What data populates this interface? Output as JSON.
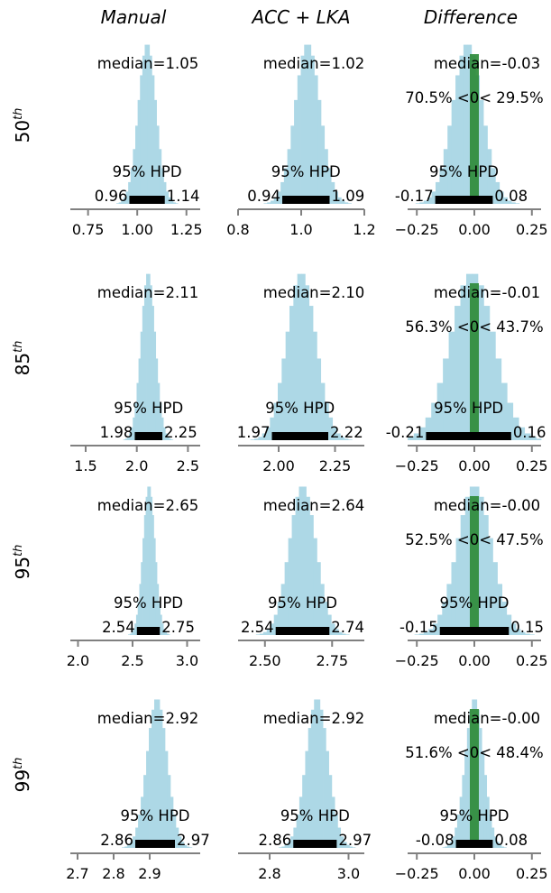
{
  "colors": {
    "hist": "#add8e6",
    "hpd_bar": "#000000",
    "zero_band": "#2e8b3a",
    "axis": "#808080"
  },
  "labels": {
    "hpd": "95% HPD",
    "median_prefix": "median=",
    "sep_lt": " <0< "
  },
  "column_titles": [
    "Manual",
    "ACC + LKA",
    "Difference"
  ],
  "row_labels": [
    {
      "base": "50",
      "sup": "th"
    },
    {
      "base": "85",
      "sup": "th"
    },
    {
      "base": "95",
      "sup": "th"
    },
    {
      "base": "99",
      "sup": "th"
    }
  ],
  "chart_data": [
    {
      "type": "histogram",
      "row": 0,
      "col": 0,
      "median": "1.05",
      "hpd": [
        0.96,
        1.14
      ],
      "hpd_labels": [
        "0.96",
        "1.14"
      ],
      "center": 1.05,
      "sd": 0.045,
      "xlim": [
        0.66,
        1.32
      ],
      "ticks": [
        0.75,
        1.0,
        1.25
      ],
      "tick_labels": [
        "0.75",
        "1.00",
        "1.25"
      ]
    },
    {
      "type": "histogram",
      "row": 0,
      "col": 1,
      "median": "1.02",
      "hpd": [
        0.94,
        1.09
      ],
      "hpd_labels": [
        "0.94",
        "1.09"
      ],
      "center": 1.02,
      "sd": 0.04,
      "xlim": [
        0.8,
        1.2
      ],
      "ticks": [
        0.8,
        1.0,
        1.2
      ],
      "tick_labels": [
        "0.8",
        "1.0",
        "1.2"
      ]
    },
    {
      "type": "histogram",
      "row": 0,
      "col": 2,
      "median": "-0.03",
      "hpd": [
        -0.17,
        0.08
      ],
      "hpd_labels": [
        "-0.17",
        "0.08"
      ],
      "center": -0.03,
      "sd": 0.065,
      "xlim": [
        -0.29,
        0.29
      ],
      "ticks": [
        -0.25,
        0.0,
        0.25
      ],
      "tick_labels": [
        "−0.25",
        "0.00",
        "0.25"
      ],
      "prob_lt": "70.5%",
      "prob_gt": "29.5%"
    },
    {
      "type": "histogram",
      "row": 1,
      "col": 0,
      "median": "2.11",
      "hpd": [
        1.98,
        2.25
      ],
      "hpd_labels": [
        "1.98",
        "2.25"
      ],
      "center": 2.11,
      "sd": 0.07,
      "xlim": [
        1.35,
        2.62
      ],
      "ticks": [
        1.5,
        2.0,
        2.5
      ],
      "tick_labels": [
        "1.5",
        "2.0",
        "2.5"
      ]
    },
    {
      "type": "histogram",
      "row": 1,
      "col": 1,
      "median": "2.10",
      "hpd": [
        1.97,
        2.22
      ],
      "hpd_labels": [
        "1.97",
        "2.22"
      ],
      "center": 2.1,
      "sd": 0.065,
      "xlim": [
        1.82,
        2.38
      ],
      "ticks": [
        2.0,
        2.25
      ],
      "tick_labels": [
        "2.00",
        "2.25"
      ]
    },
    {
      "type": "histogram",
      "row": 1,
      "col": 2,
      "median": "-0.01",
      "hpd": [
        -0.21,
        0.16
      ],
      "hpd_labels": [
        "-0.21",
        "0.16"
      ],
      "center": -0.01,
      "sd": 0.095,
      "xlim": [
        -0.29,
        0.29
      ],
      "ticks": [
        -0.25,
        0.0,
        0.25
      ],
      "tick_labels": [
        "−0.25",
        "0.00",
        "0.25"
      ],
      "prob_lt": "56.3%",
      "prob_gt": "43.7%"
    },
    {
      "type": "histogram",
      "row": 2,
      "col": 0,
      "median": "2.65",
      "hpd": [
        2.54,
        2.75
      ],
      "hpd_labels": [
        "2.54",
        "2.75"
      ],
      "center": 2.65,
      "sd": 0.055,
      "xlim": [
        1.93,
        3.12
      ],
      "ticks": [
        2.0,
        2.5,
        3.0
      ],
      "tick_labels": [
        "2.0",
        "2.5",
        "3.0"
      ]
    },
    {
      "type": "histogram",
      "row": 2,
      "col": 1,
      "median": "2.64",
      "hpd": [
        2.54,
        2.74
      ],
      "hpd_labels": [
        "2.54",
        "2.74"
      ],
      "center": 2.64,
      "sd": 0.05,
      "xlim": [
        2.4,
        2.87
      ],
      "ticks": [
        2.5,
        2.75
      ],
      "tick_labels": [
        "2.50",
        "2.75"
      ]
    },
    {
      "type": "histogram",
      "row": 2,
      "col": 2,
      "median": "-0.00",
      "hpd": [
        -0.15,
        0.15
      ],
      "hpd_labels": [
        "-0.15",
        "0.15"
      ],
      "center": 0.0,
      "sd": 0.075,
      "xlim": [
        -0.29,
        0.29
      ],
      "ticks": [
        -0.25,
        0.0,
        0.25
      ],
      "tick_labels": [
        "−0.25",
        "0.00",
        "0.25"
      ],
      "prob_lt": "52.5%",
      "prob_gt": "47.5%"
    },
    {
      "type": "histogram",
      "row": 3,
      "col": 0,
      "median": "2.92",
      "hpd": [
        2.86,
        2.97
      ],
      "hpd_labels": [
        "2.86",
        "2.97"
      ],
      "center": 2.92,
      "sd": 0.028,
      "xlim": [
        2.68,
        3.04
      ],
      "ticks": [
        2.7,
        2.8,
        2.9
      ],
      "tick_labels": [
        "2.7",
        "2.8",
        "2.9"
      ]
    },
    {
      "type": "histogram",
      "row": 3,
      "col": 1,
      "median": "2.92",
      "hpd": [
        2.86,
        2.97
      ],
      "hpd_labels": [
        "2.86",
        "2.97"
      ],
      "center": 2.92,
      "sd": 0.028,
      "xlim": [
        2.72,
        3.04
      ],
      "ticks": [
        2.8,
        3.0
      ],
      "tick_labels": [
        "2.8",
        "3.0"
      ]
    },
    {
      "type": "histogram",
      "row": 3,
      "col": 2,
      "median": "-0.00",
      "hpd": [
        -0.08,
        0.08
      ],
      "hpd_labels": [
        "-0.08",
        "0.08"
      ],
      "center": 0.0,
      "sd": 0.04,
      "xlim": [
        -0.29,
        0.29
      ],
      "ticks": [
        -0.25,
        0.0,
        0.25
      ],
      "tick_labels": [
        "−0.25",
        "0.00",
        "0.25"
      ],
      "prob_lt": "51.6%",
      "prob_gt": "48.4%"
    }
  ]
}
